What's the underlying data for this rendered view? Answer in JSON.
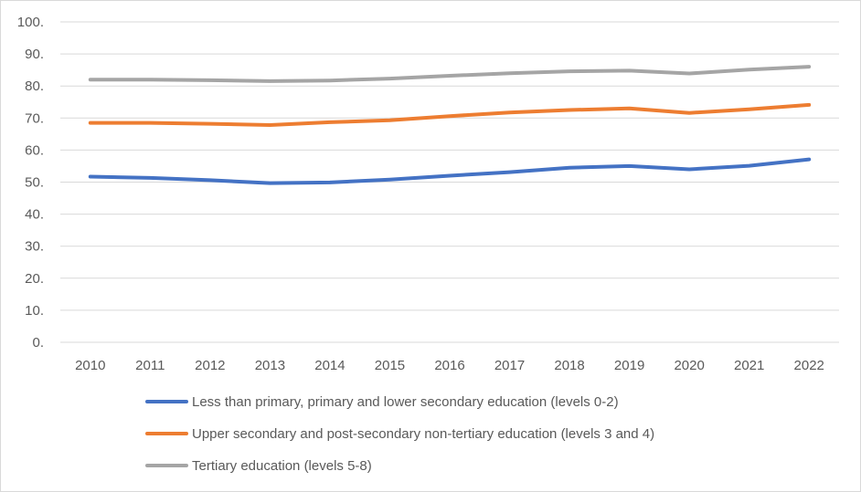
{
  "chart_data": {
    "type": "line",
    "title": "",
    "xlabel": "",
    "ylabel": "",
    "x": [
      "2010",
      "2011",
      "2012",
      "2013",
      "2014",
      "2015",
      "2016",
      "2017",
      "2018",
      "2019",
      "2020",
      "2021",
      "2022"
    ],
    "ylim": [
      0,
      100
    ],
    "yticks": [
      0,
      10,
      20,
      30,
      40,
      50,
      60,
      70,
      80,
      90,
      100
    ],
    "ytick_labels": [
      "0.",
      "10.",
      "20.",
      "30.",
      "40.",
      "50.",
      "60.",
      "70.",
      "80.",
      "90.",
      "100."
    ],
    "grid": true,
    "legend_position": "bottom",
    "series": [
      {
        "name": "Less than primary, primary and lower secondary education (levels 0-2)",
        "color": "#4472C4",
        "values": [
          51.7,
          51.3,
          50.6,
          49.7,
          49.9,
          50.8,
          52.0,
          53.1,
          54.5,
          55.0,
          54.0,
          55.1,
          57.1
        ]
      },
      {
        "name": "Upper secondary and post-secondary non-tertiary education (levels 3 and 4)",
        "color": "#ED7D31",
        "values": [
          68.5,
          68.5,
          68.2,
          67.8,
          68.7,
          69.3,
          70.6,
          71.7,
          72.5,
          73.0,
          71.6,
          72.7,
          74.1
        ]
      },
      {
        "name": "Tertiary education (levels 5-8)",
        "color": "#A5A5A5",
        "values": [
          82.0,
          82.0,
          81.8,
          81.5,
          81.7,
          82.3,
          83.2,
          84.0,
          84.6,
          84.8,
          83.9,
          85.1,
          86.0
        ]
      }
    ]
  }
}
